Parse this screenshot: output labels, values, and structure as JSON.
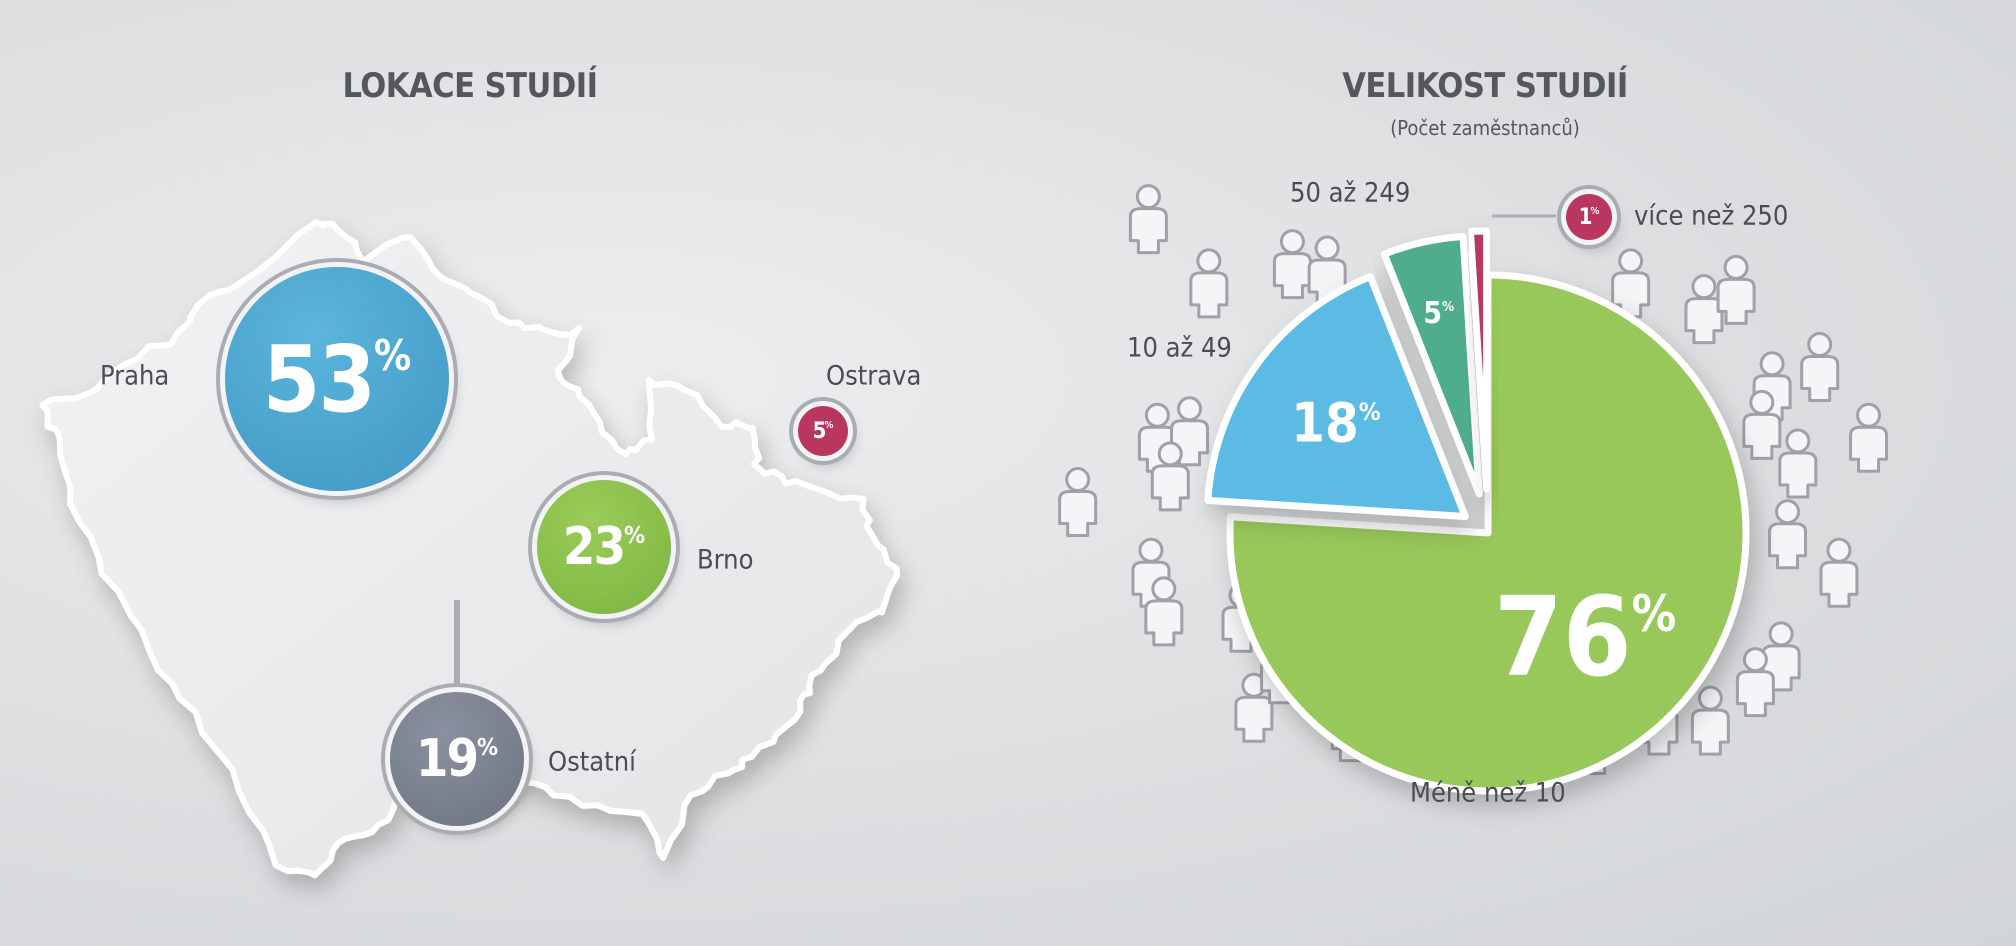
{
  "chart_data": [
    {
      "type": "bubble-map",
      "title": "LOKACE STUDIÍ",
      "categories": [
        "Praha",
        "Brno",
        "Ostrava",
        "Ostatní"
      ],
      "values": [
        53,
        23,
        5,
        19
      ],
      "labels": [
        "53%",
        "23%",
        "5%",
        "19%"
      ],
      "colors": [
        "#4ba6d1",
        "#8dc04d",
        "#b9375f",
        "#7e8592"
      ]
    },
    {
      "type": "pie",
      "title": "VELIKOST STUDIÍ",
      "subtitle": "(Počet zaměstnanců)",
      "categories": [
        "Méně než 10",
        "10 až 49",
        "50 až 249",
        "více než 250"
      ],
      "values": [
        76,
        18,
        5,
        1
      ],
      "labels": [
        "76%",
        "18%",
        "5%",
        "1%"
      ],
      "colors": [
        "#98c75a",
        "#5cbbe4",
        "#4fad8b",
        "#b9375f"
      ]
    }
  ]
}
